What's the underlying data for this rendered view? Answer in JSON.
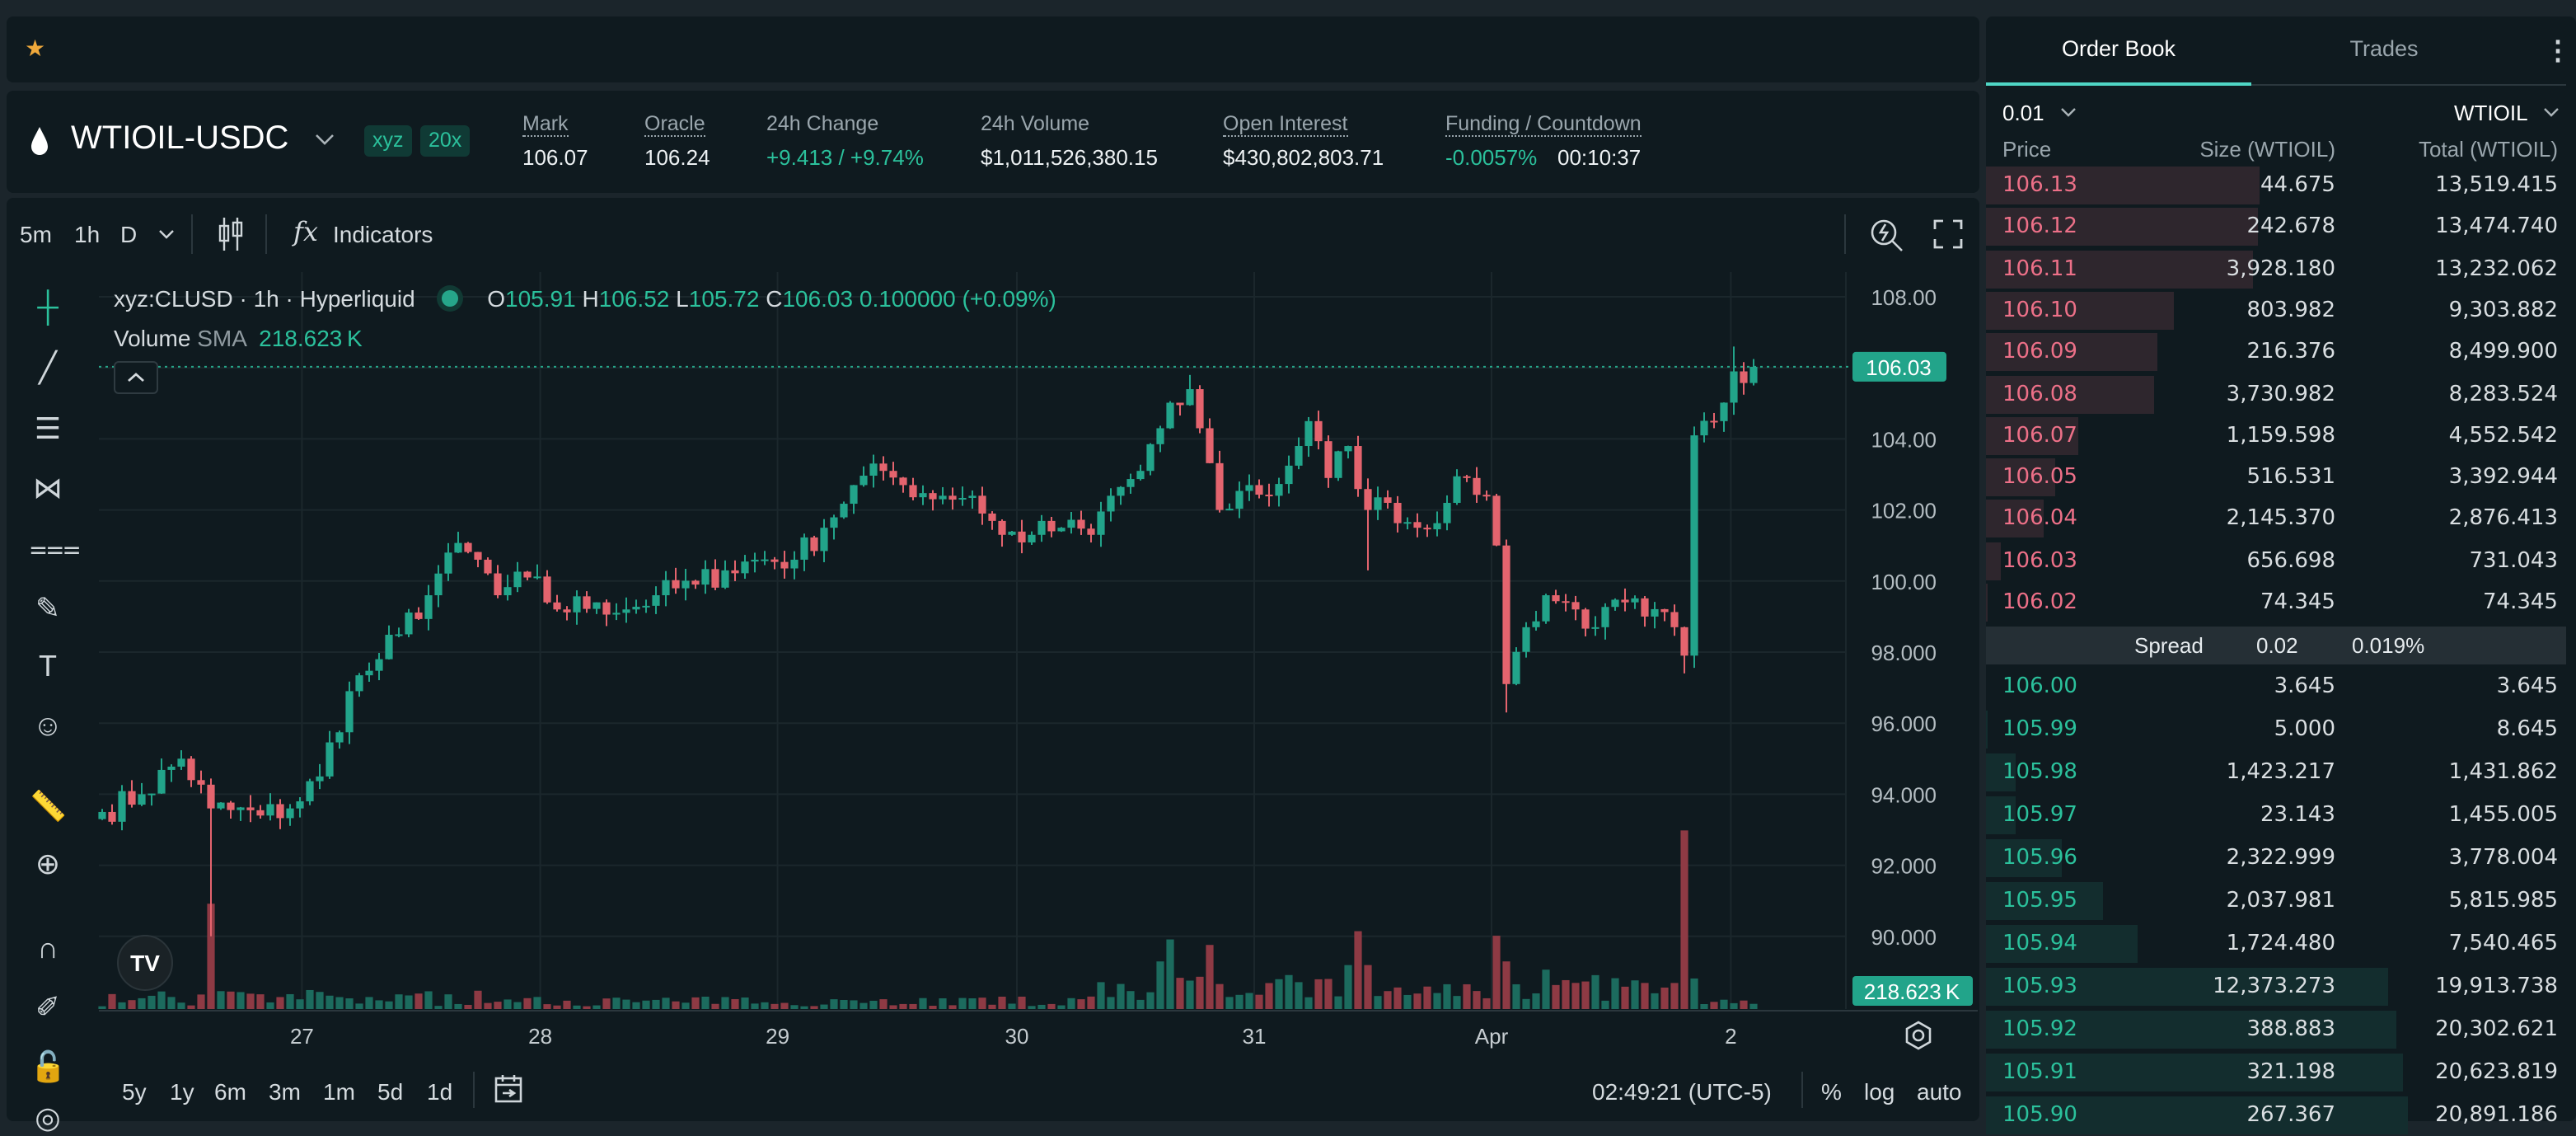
{
  "header": {
    "favorite_icon": "star-icon"
  },
  "market": {
    "symbol": "WTIOIL-USDC",
    "badges": [
      "xyz",
      "20x"
    ],
    "stats": [
      {
        "label": "Mark",
        "value": "106.07",
        "color": "default"
      },
      {
        "label": "Oracle",
        "value": "106.24",
        "color": "default"
      },
      {
        "label": "24h Change",
        "value": "+9.413 / +9.74%",
        "color": "green"
      },
      {
        "label": "24h Volume",
        "value": "$1,011,526,380.15",
        "color": "default"
      },
      {
        "label": "Open Interest",
        "value": "$430,802,803.71",
        "color": "default"
      },
      {
        "label": "Funding / Countdown",
        "value": "-0.0057%",
        "value2": "00:10:37",
        "color": "green"
      }
    ]
  },
  "chart_toolbar": {
    "intervals": [
      "5m",
      "1h",
      "D"
    ],
    "active_interval": "1h",
    "indicators_label": "Indicators",
    "fx": "fx"
  },
  "legend": {
    "title": "xyz:CLUSD · 1h · Hyperliquid",
    "o_label": "O",
    "o": "105.91",
    "h_label": "H",
    "h": "106.52",
    "l_label": "L",
    "l": "105.72",
    "c_label": "C",
    "c": "106.03",
    "change": "0.100000 (+0.09%)",
    "volume_label": "Volume",
    "sma_label": "SMA",
    "sma_value": "218.623 K"
  },
  "chart_data": {
    "type": "candlestick",
    "symbol": "xyz:CLUSD",
    "interval": "1h",
    "y_ticks": [
      "108.00",
      "104.00",
      "102.00",
      "100.00",
      "98.000",
      "96.000",
      "94.000",
      "92.000",
      "90.000"
    ],
    "y_tick_values": [
      108,
      104,
      102,
      100,
      98,
      96,
      94,
      92,
      90
    ],
    "ylim": [
      88.4,
      108.9
    ],
    "x_ticks": [
      {
        "label": "27",
        "hour": 20.2
      },
      {
        "label": "28",
        "hour": 44.3
      },
      {
        "label": "29",
        "hour": 68.3
      },
      {
        "label": "30",
        "hour": 92.5
      },
      {
        "label": "31",
        "hour": 116.5
      },
      {
        "label": "Apr",
        "hour": 140.5
      },
      {
        "label": "2",
        "hour": 164.7
      }
    ],
    "last_price": "106.03",
    "last_price_value": 106.03,
    "volume_sma_label": "218.623 K",
    "candle_count": 168,
    "close_keypoints": [
      [
        0,
        93.5
      ],
      [
        4,
        94
      ],
      [
        8,
        95
      ],
      [
        11,
        93.6
      ],
      [
        16,
        93.4
      ],
      [
        19,
        93.6
      ],
      [
        22,
        94.5
      ],
      [
        25,
        96.9
      ],
      [
        28,
        97.8
      ],
      [
        30,
        98.5
      ],
      [
        33,
        99.6
      ],
      [
        35,
        100.8
      ],
      [
        38,
        100.6
      ],
      [
        40,
        99.6
      ],
      [
        43,
        100.1
      ],
      [
        46,
        99.2
      ],
      [
        50,
        99.4
      ],
      [
        53,
        99.2
      ],
      [
        56,
        99.6
      ],
      [
        60,
        99.9
      ],
      [
        63,
        100.3
      ],
      [
        66,
        100.6
      ],
      [
        70,
        100.6
      ],
      [
        73,
        101.5
      ],
      [
        76,
        102.7
      ],
      [
        79,
        103.1
      ],
      [
        81,
        102.7
      ],
      [
        85,
        102.4
      ],
      [
        88,
        102.4
      ],
      [
        91,
        101.3
      ],
      [
        94,
        101.3
      ],
      [
        97,
        101.5
      ],
      [
        100,
        101.3
      ],
      [
        102,
        102.4
      ],
      [
        105,
        103.1
      ],
      [
        107,
        104.3
      ],
      [
        110,
        105.4
      ],
      [
        111,
        104.3
      ],
      [
        113,
        102
      ],
      [
        116,
        102.7
      ],
      [
        118,
        102.4
      ],
      [
        121,
        103.8
      ],
      [
        122,
        104.5
      ],
      [
        124,
        102.9
      ],
      [
        126,
        103.8
      ],
      [
        128,
        102
      ],
      [
        130,
        102.2
      ],
      [
        133,
        101.5
      ],
      [
        136,
        102.2
      ],
      [
        138,
        102.9
      ],
      [
        140,
        102.4
      ],
      [
        141,
        101
      ],
      [
        142,
        97.1
      ],
      [
        144,
        98.7
      ],
      [
        146,
        99.6
      ],
      [
        149,
        99.2
      ],
      [
        151,
        98.7
      ],
      [
        154,
        99.4
      ],
      [
        156,
        99
      ],
      [
        159,
        98.7
      ],
      [
        160,
        97.9
      ],
      [
        161,
        104.1
      ],
      [
        163,
        104.5
      ],
      [
        165,
        105.9
      ],
      [
        167,
        106.03
      ]
    ],
    "low_wicks": [
      [
        11,
        90.0
      ],
      [
        142,
        96.3
      ],
      [
        128,
        100.3
      ],
      [
        160,
        97.4
      ]
    ],
    "high_wicks": [
      [
        110,
        105.8
      ],
      [
        165,
        106.6
      ]
    ],
    "volume_spikes_k": [
      [
        11,
        1150
      ],
      [
        107,
        520
      ],
      [
        108,
        760
      ],
      [
        112,
        700
      ],
      [
        126,
        480
      ],
      [
        127,
        850
      ],
      [
        128,
        480
      ],
      [
        141,
        800
      ],
      [
        142,
        520
      ],
      [
        146,
        430
      ],
      [
        160,
        1950
      ]
    ],
    "colors": {
      "up": "#22a48a",
      "down": "#e4646e",
      "vol_up": "#1c6b5e",
      "vol_down": "#8e3a44"
    }
  },
  "time_ranges": [
    "5y",
    "1y",
    "6m",
    "3m",
    "1m",
    "5d",
    "1d"
  ],
  "footer": {
    "time": "02:49:21 (UTC-5)",
    "percent": "%",
    "log": "log",
    "auto": "auto"
  },
  "orderbook": {
    "tabs": [
      "Order Book",
      "Trades"
    ],
    "tick": "0.01",
    "unit": "WTIOIL",
    "headers": [
      "Price",
      "Size (WTIOIL)",
      "Total (WTIOIL)"
    ],
    "asks": [
      [
        "106.13",
        "44.675",
        "13,519.415"
      ],
      [
        "106.12",
        "242.678",
        "13,474.740"
      ],
      [
        "106.11",
        "3,928.180",
        "13,232.062"
      ],
      [
        "106.10",
        "803.982",
        "9,303.882"
      ],
      [
        "106.09",
        "216.376",
        "8,499.900"
      ],
      [
        "106.08",
        "3,730.982",
        "8,283.524"
      ],
      [
        "106.07",
        "1,159.598",
        "4,552.542"
      ],
      [
        "106.05",
        "516.531",
        "3,392.944"
      ],
      [
        "106.04",
        "2,145.370",
        "2,876.413"
      ],
      [
        "106.03",
        "656.698",
        "731.043"
      ],
      [
        "106.02",
        "74.345",
        "74.345"
      ]
    ],
    "spread": {
      "label": "Spread",
      "value": "0.02",
      "percent": "0.019%"
    },
    "bids": [
      [
        "106.00",
        "3.645",
        "3.645"
      ],
      [
        "105.99",
        "5.000",
        "8.645"
      ],
      [
        "105.98",
        "1,423.217",
        "1,431.862"
      ],
      [
        "105.97",
        "23.143",
        "1,455.005"
      ],
      [
        "105.96",
        "2,322.999",
        "3,778.004"
      ],
      [
        "105.95",
        "2,037.981",
        "5,815.985"
      ],
      [
        "105.94",
        "1,724.480",
        "7,540.465"
      ],
      [
        "105.93",
        "12,373.273",
        "19,913.738"
      ],
      [
        "105.92",
        "388.883",
        "20,302.621"
      ],
      [
        "105.91",
        "321.198",
        "20,623.819"
      ],
      [
        "105.90",
        "267.367",
        "20,891.186"
      ]
    ]
  }
}
